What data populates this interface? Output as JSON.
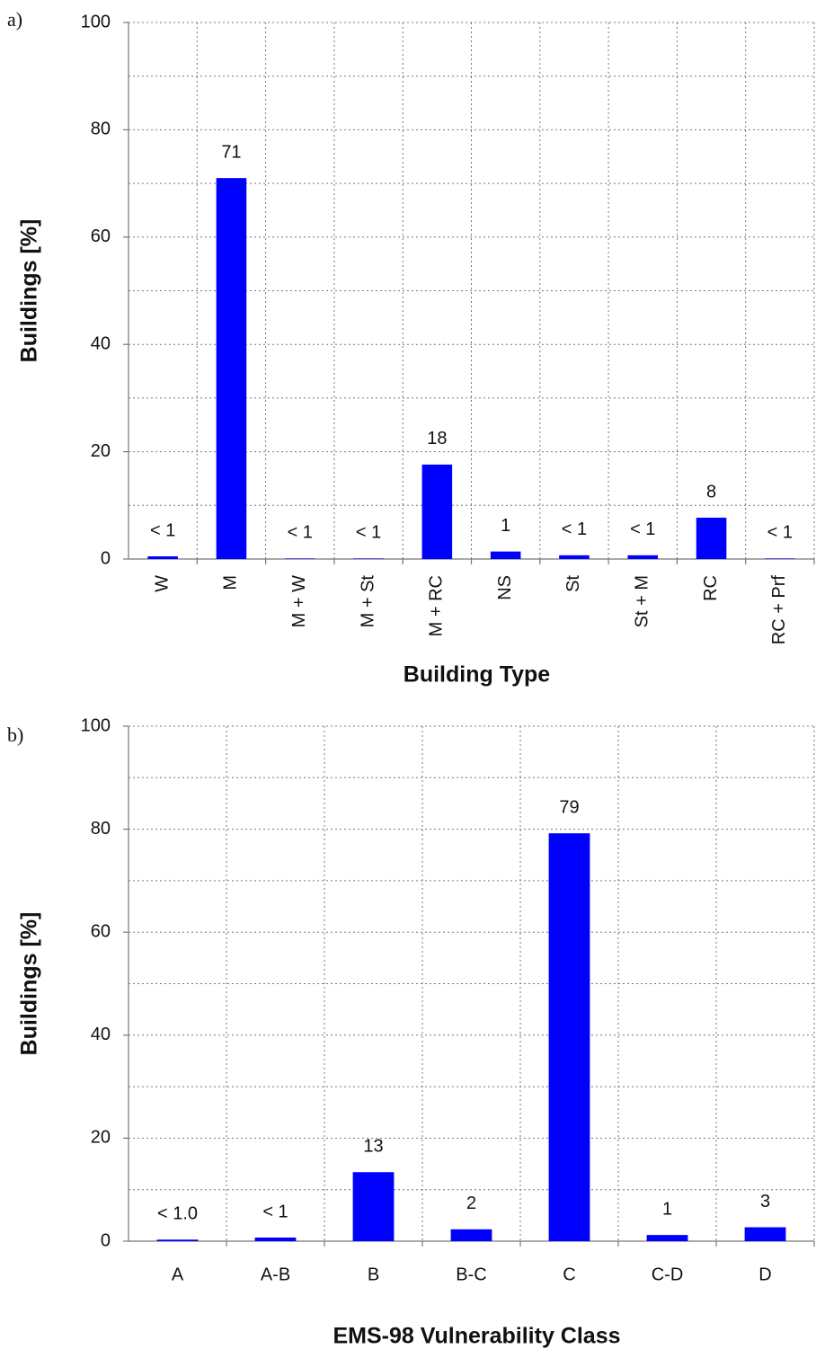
{
  "chart_data": [
    {
      "type": "bar",
      "panel_label": "a)",
      "xlabel": "Building Type",
      "ylabel": "Buildings [%]",
      "categories": [
        "W",
        "M",
        "M + W",
        "M + St",
        "M + RC",
        "NS",
        "St",
        "St + M",
        "RC",
        "RC + Prf"
      ],
      "values": [
        0.5,
        71,
        0.1,
        0.1,
        17.6,
        1.4,
        0.7,
        0.7,
        7.7,
        0.1
      ],
      "value_labels": [
        "< 1",
        "71",
        "< 1",
        "< 1",
        "18",
        "1",
        "< 1",
        "< 1",
        "8",
        "< 1"
      ],
      "color": "#0000ff",
      "ylim": [
        0,
        100
      ],
      "yticks": [
        0,
        20,
        40,
        60,
        80,
        100
      ],
      "yminor": [
        10,
        30,
        50,
        70,
        90
      ],
      "grid": true
    },
    {
      "type": "bar",
      "panel_label": "b)",
      "xlabel": "EMS-98 Vulnerability Class",
      "ylabel": "Buildings [%]",
      "categories": [
        "A",
        "A-B",
        "B",
        "B-C",
        "C",
        "C-D",
        "D"
      ],
      "values": [
        0.3,
        0.7,
        13.4,
        2.3,
        79.2,
        1.2,
        2.7
      ],
      "value_labels": [
        "< 1.0",
        "< 1",
        "13",
        "2",
        "79",
        "1",
        "3"
      ],
      "color": "#0000ff",
      "ylim": [
        0,
        100
      ],
      "yticks": [
        0,
        20,
        40,
        60,
        80,
        100
      ],
      "yminor": [
        10,
        30,
        50,
        70,
        90
      ],
      "grid": true
    }
  ]
}
